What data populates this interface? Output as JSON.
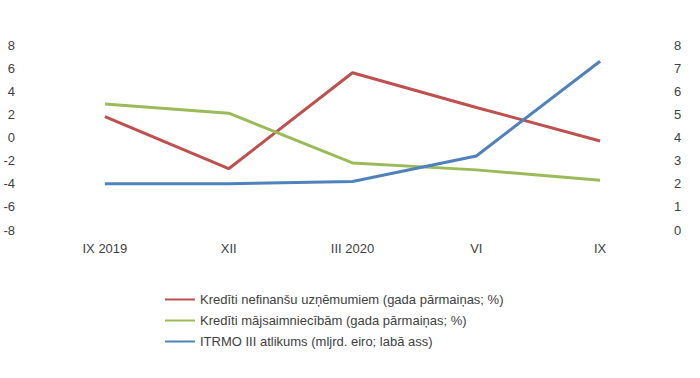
{
  "chart_data": {
    "type": "line",
    "categories": [
      "IX 2019",
      "XII",
      "III 2020",
      "VI",
      "IX"
    ],
    "series": [
      {
        "name": "Kredīti nefinanšu uzņēmumiem (gada pārmaiņas; %)",
        "color": "#c0504d",
        "values": [
          1.8,
          -2.7,
          5.6,
          2.6,
          -0.3
        ]
      },
      {
        "name": "Kredīti mājsaimniecībām (gada pārmaiņas; %)",
        "color": "#9bbb59",
        "values": [
          2.9,
          2.1,
          -2.2,
          -2.8,
          -3.7
        ]
      },
      {
        "name": "ITRMO III atlikums (mljrd. eiro; labā ass)",
        "color": "#4f81bd",
        "values": [
          2.0,
          2.0,
          2.1,
          3.2,
          7.3
        ],
        "axis": "y2"
      }
    ],
    "ylim": [
      -8,
      8
    ],
    "yticks": [
      -8,
      -6,
      -4,
      -2,
      0,
      2,
      4,
      6,
      8
    ],
    "y2lim": [
      0,
      8
    ],
    "y2ticks": [
      0,
      1,
      2,
      3,
      4,
      5,
      6,
      7,
      8
    ],
    "grid": false,
    "legend": "bottom"
  }
}
